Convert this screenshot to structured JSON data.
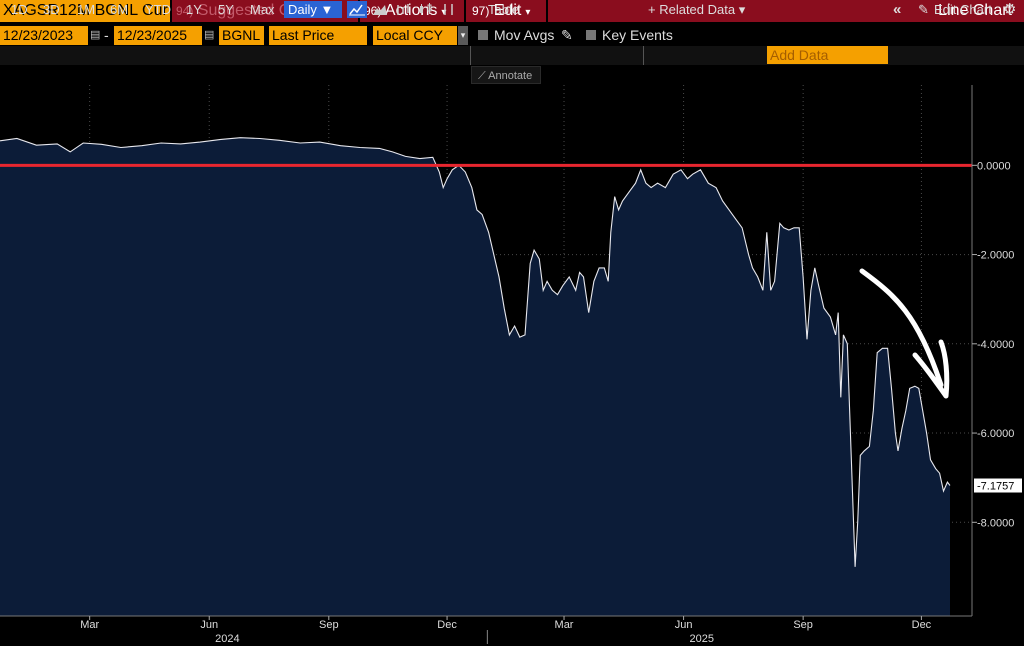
{
  "header": {
    "ticker": "XAGSR12M BGNL Cur",
    "suggested_num": "94)",
    "suggested_label": "Suggested Charts",
    "actions_num": "96)",
    "actions_label": "Actions",
    "edit_num": "97)",
    "edit_label": "Edit",
    "title": "Line Chart"
  },
  "params": {
    "start_date": "12/23/2023",
    "end_date": "12/23/2025",
    "source": "BGNL",
    "field": "Last Price",
    "currency": "Local CCY",
    "mov_avgs_label": "Mov Avgs",
    "key_events_label": "Key Events"
  },
  "toolbar": {
    "ranges": [
      "1D",
      "3D",
      "1M",
      "6M",
      "YTD",
      "1Y",
      "5Y",
      "Max"
    ],
    "frequency": "Daily ▼",
    "table_label": "Table",
    "related_data_label": "+ Related Data ▾",
    "add_data_placeholder": "Add Data",
    "collapse_label": "«",
    "edit_chart_label": "Edit Chart",
    "annotate_label": "Annotate"
  },
  "colors": {
    "accent_orange": "#f5a000",
    "title_bar": "#8a0d1e",
    "selected_blue": "#2a64d4",
    "area_fill": "#0c1c38",
    "line": "#e8e8ee",
    "zero_line": "#e8262f",
    "arrow": "#ffffff"
  },
  "chart_data": {
    "type": "area",
    "title": "",
    "xlabel": "",
    "ylabel": "",
    "x_range": [
      "2023-12-23",
      "2025-12-23"
    ],
    "ylim": [
      -10.1,
      1.8
    ],
    "y_ticks": [
      0,
      -2,
      -4,
      -6,
      -8
    ],
    "y_tick_labels": [
      "0.0000",
      "-2.0000",
      "-4.0000",
      "-6.0000",
      "-8.0000"
    ],
    "x_month_labels": [
      {
        "date": "2024-03-01",
        "label": "Mar"
      },
      {
        "date": "2024-06-01",
        "label": "Jun"
      },
      {
        "date": "2024-09-01",
        "label": "Sep"
      },
      {
        "date": "2024-12-01",
        "label": "Dec"
      },
      {
        "date": "2025-03-01",
        "label": "Mar"
      },
      {
        "date": "2025-06-01",
        "label": "Jun"
      },
      {
        "date": "2025-09-01",
        "label": "Sep"
      },
      {
        "date": "2025-12-01",
        "label": "Dec"
      }
    ],
    "x_year_labels": [
      {
        "date": "2024-06-15",
        "label": "2024"
      },
      {
        "date": "2025-06-15",
        "label": "2025"
      }
    ],
    "grid": true,
    "reference_line": 0,
    "last_value": -7.1757,
    "last_value_label": "-7.1757",
    "series": [
      {
        "points": [
          [
            "2023-12-23",
            0.55
          ],
          [
            "2024-01-05",
            0.6
          ],
          [
            "2024-01-20",
            0.45
          ],
          [
            "2024-02-05",
            0.48
          ],
          [
            "2024-02-15",
            0.3
          ],
          [
            "2024-02-25",
            0.5
          ],
          [
            "2024-03-10",
            0.47
          ],
          [
            "2024-03-25",
            0.4
          ],
          [
            "2024-04-10",
            0.44
          ],
          [
            "2024-04-25",
            0.5
          ],
          [
            "2024-05-10",
            0.48
          ],
          [
            "2024-05-25",
            0.52
          ],
          [
            "2024-06-10",
            0.58
          ],
          [
            "2024-06-25",
            0.62
          ],
          [
            "2024-07-10",
            0.6
          ],
          [
            "2024-07-25",
            0.56
          ],
          [
            "2024-08-10",
            0.5
          ],
          [
            "2024-08-25",
            0.52
          ],
          [
            "2024-09-10",
            0.44
          ],
          [
            "2024-09-25",
            0.4
          ],
          [
            "2024-10-10",
            0.38
          ],
          [
            "2024-10-20",
            0.3
          ],
          [
            "2024-10-30",
            0.2
          ],
          [
            "2024-11-10",
            0.15
          ],
          [
            "2024-11-20",
            0.18
          ],
          [
            "2024-11-25",
            -0.15
          ],
          [
            "2024-11-28",
            -0.5
          ],
          [
            "2024-12-01",
            -0.3
          ],
          [
            "2024-12-05",
            -0.1
          ],
          [
            "2024-12-10",
            0.0
          ],
          [
            "2024-12-15",
            -0.15
          ],
          [
            "2024-12-20",
            -0.5
          ],
          [
            "2024-12-24",
            -1.0
          ],
          [
            "2024-12-28",
            -1.1
          ],
          [
            "2025-01-02",
            -1.5
          ],
          [
            "2025-01-06",
            -2.0
          ],
          [
            "2025-01-10",
            -2.5
          ],
          [
            "2025-01-14",
            -3.2
          ],
          [
            "2025-01-18",
            -3.8
          ],
          [
            "2025-01-22",
            -3.6
          ],
          [
            "2025-01-26",
            -3.85
          ],
          [
            "2025-01-30",
            -3.8
          ],
          [
            "2025-02-03",
            -2.2
          ],
          [
            "2025-02-06",
            -1.9
          ],
          [
            "2025-02-10",
            -2.1
          ],
          [
            "2025-02-13",
            -2.8
          ],
          [
            "2025-02-16",
            -2.6
          ],
          [
            "2025-02-20",
            -2.8
          ],
          [
            "2025-02-24",
            -2.9
          ],
          [
            "2025-02-28",
            -2.7
          ],
          [
            "2025-03-05",
            -2.5
          ],
          [
            "2025-03-10",
            -2.8
          ],
          [
            "2025-03-13",
            -2.4
          ],
          [
            "2025-03-16",
            -2.5
          ],
          [
            "2025-03-20",
            -3.3
          ],
          [
            "2025-03-24",
            -2.6
          ],
          [
            "2025-03-28",
            -2.3
          ],
          [
            "2025-04-01",
            -2.3
          ],
          [
            "2025-04-04",
            -2.6
          ],
          [
            "2025-04-06",
            -1.5
          ],
          [
            "2025-04-09",
            -0.7
          ],
          [
            "2025-04-12",
            -1.0
          ],
          [
            "2025-04-15",
            -0.8
          ],
          [
            "2025-04-20",
            -0.6
          ],
          [
            "2025-04-25",
            -0.4
          ],
          [
            "2025-04-29",
            -0.1
          ],
          [
            "2025-05-03",
            -0.4
          ],
          [
            "2025-05-07",
            -0.5
          ],
          [
            "2025-05-12",
            -0.4
          ],
          [
            "2025-05-18",
            -0.5
          ],
          [
            "2025-05-24",
            -0.2
          ],
          [
            "2025-05-30",
            -0.1
          ],
          [
            "2025-06-04",
            -0.3
          ],
          [
            "2025-06-08",
            -0.2
          ],
          [
            "2025-06-14",
            -0.1
          ],
          [
            "2025-06-20",
            -0.4
          ],
          [
            "2025-06-26",
            -0.5
          ],
          [
            "2025-07-01",
            -0.8
          ],
          [
            "2025-07-06",
            -1.0
          ],
          [
            "2025-07-11",
            -1.2
          ],
          [
            "2025-07-16",
            -1.4
          ],
          [
            "2025-07-21",
            -2.0
          ],
          [
            "2025-07-24",
            -2.3
          ],
          [
            "2025-07-28",
            -2.5
          ],
          [
            "2025-08-01",
            -2.8
          ],
          [
            "2025-08-04",
            -1.5
          ],
          [
            "2025-08-07",
            -2.8
          ],
          [
            "2025-08-10",
            -2.6
          ],
          [
            "2025-08-14",
            -1.3
          ],
          [
            "2025-08-17",
            -1.4
          ],
          [
            "2025-08-21",
            -1.45
          ],
          [
            "2025-08-25",
            -1.4
          ],
          [
            "2025-08-29",
            -1.4
          ],
          [
            "2025-09-01",
            -2.5
          ],
          [
            "2025-09-04",
            -3.9
          ],
          [
            "2025-09-07",
            -2.8
          ],
          [
            "2025-09-10",
            -2.3
          ],
          [
            "2025-09-13",
            -2.7
          ],
          [
            "2025-09-17",
            -3.2
          ],
          [
            "2025-09-22",
            -3.4
          ],
          [
            "2025-09-26",
            -3.8
          ],
          [
            "2025-09-28",
            -3.3
          ],
          [
            "2025-09-30",
            -5.2
          ],
          [
            "2025-10-02",
            -3.8
          ],
          [
            "2025-10-05",
            -4.0
          ],
          [
            "2025-10-08",
            -6.5
          ],
          [
            "2025-10-11",
            -9.0
          ],
          [
            "2025-10-13",
            -8.0
          ],
          [
            "2025-10-15",
            -6.5
          ],
          [
            "2025-10-18",
            -6.4
          ],
          [
            "2025-10-22",
            -6.3
          ],
          [
            "2025-10-25",
            -5.5
          ],
          [
            "2025-10-28",
            -4.2
          ],
          [
            "2025-11-01",
            -4.1
          ],
          [
            "2025-11-05",
            -4.1
          ],
          [
            "2025-11-08",
            -5.0
          ],
          [
            "2025-11-11",
            -6.0
          ],
          [
            "2025-11-13",
            -6.4
          ],
          [
            "2025-11-16",
            -5.9
          ],
          [
            "2025-11-19",
            -5.5
          ],
          [
            "2025-11-22",
            -5.0
          ],
          [
            "2025-11-26",
            -4.95
          ],
          [
            "2025-11-29",
            -5.0
          ],
          [
            "2025-12-02",
            -5.5
          ],
          [
            "2025-12-05",
            -6.0
          ],
          [
            "2025-12-08",
            -6.6
          ],
          [
            "2025-12-12",
            -6.8
          ],
          [
            "2025-12-15",
            -6.9
          ],
          [
            "2025-12-18",
            -7.3
          ],
          [
            "2025-12-21",
            -7.1
          ],
          [
            "2025-12-23",
            -7.1757
          ]
        ]
      }
    ]
  }
}
